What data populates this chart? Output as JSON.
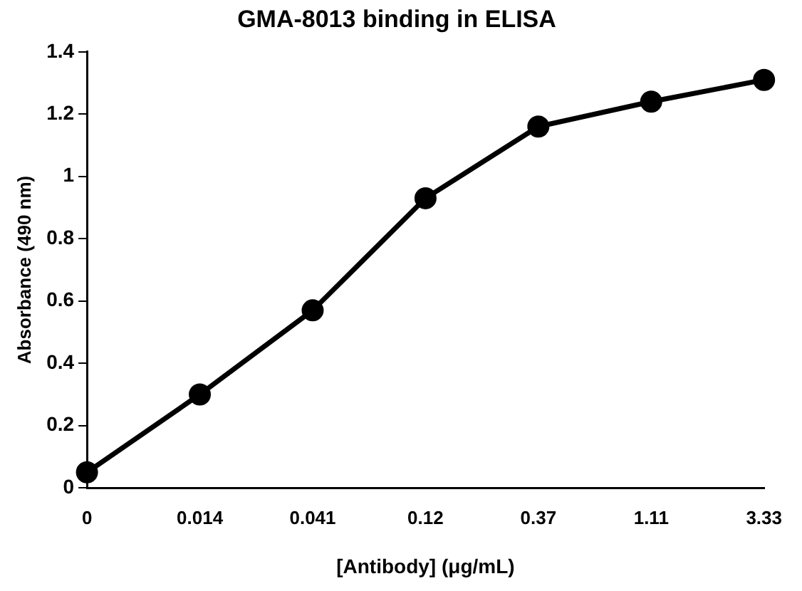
{
  "chart_data": {
    "type": "line",
    "title": "GMA-8013 binding in ELISA",
    "xlabel": "[Antibody] (μg/mL)",
    "ylabel": "Absorbance (490 nm)",
    "categories": [
      "0",
      "0.014",
      "0.041",
      "0.12",
      "0.37",
      "1.11",
      "3.33"
    ],
    "series": [
      {
        "color": "#000000",
        "values": [
          0.05,
          0.3,
          0.57,
          0.93,
          1.16,
          1.24,
          1.31
        ]
      }
    ],
    "ylim": [
      0,
      1.4
    ],
    "yticks": [
      0,
      0.2,
      0.4,
      0.6,
      0.8,
      1,
      1.2,
      1.4
    ],
    "grid": false,
    "legend": false,
    "marker": "circle",
    "line_style": "solid"
  }
}
